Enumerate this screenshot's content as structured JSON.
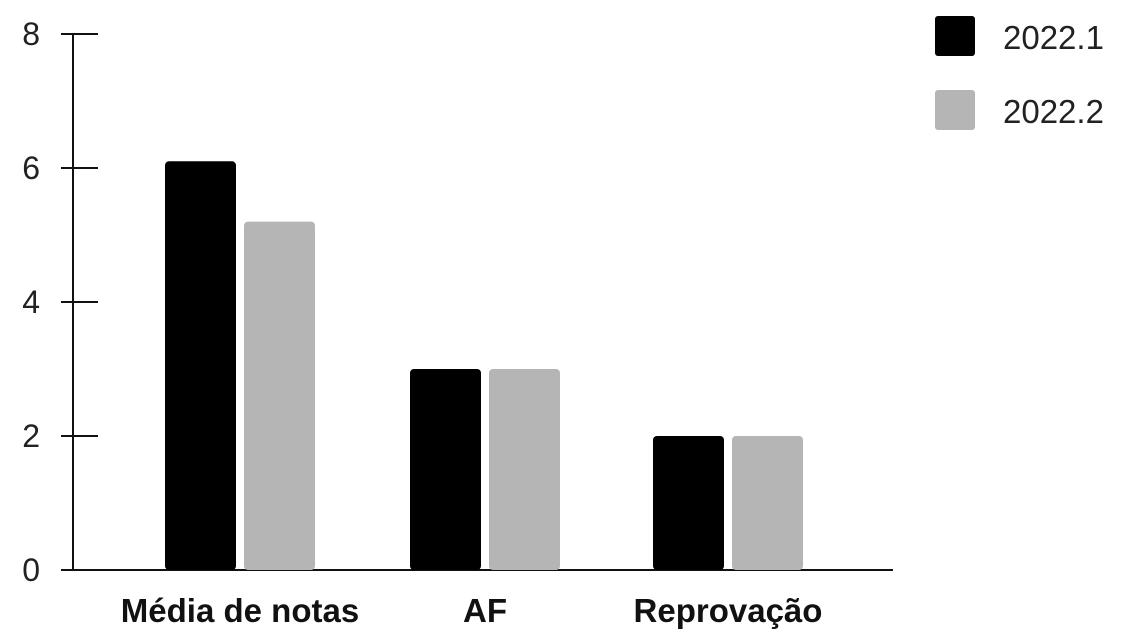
{
  "chart_data": {
    "type": "bar",
    "title": "",
    "xlabel": "",
    "ylabel": "",
    "categories": [
      "Média de notas",
      "AF",
      "Reprovação"
    ],
    "series": [
      {
        "name": "2022.1",
        "color": "#000000",
        "values": [
          6.1,
          3.0,
          2.0
        ]
      },
      {
        "name": "2022.2",
        "color": "#b5b5b5",
        "values": [
          5.2,
          3.0,
          2.0
        ]
      }
    ],
    "yticks": [
      "0",
      "2",
      "4",
      "6",
      "8"
    ],
    "ylim": [
      0,
      8
    ],
    "grid": false,
    "legend_position": "top-right"
  }
}
